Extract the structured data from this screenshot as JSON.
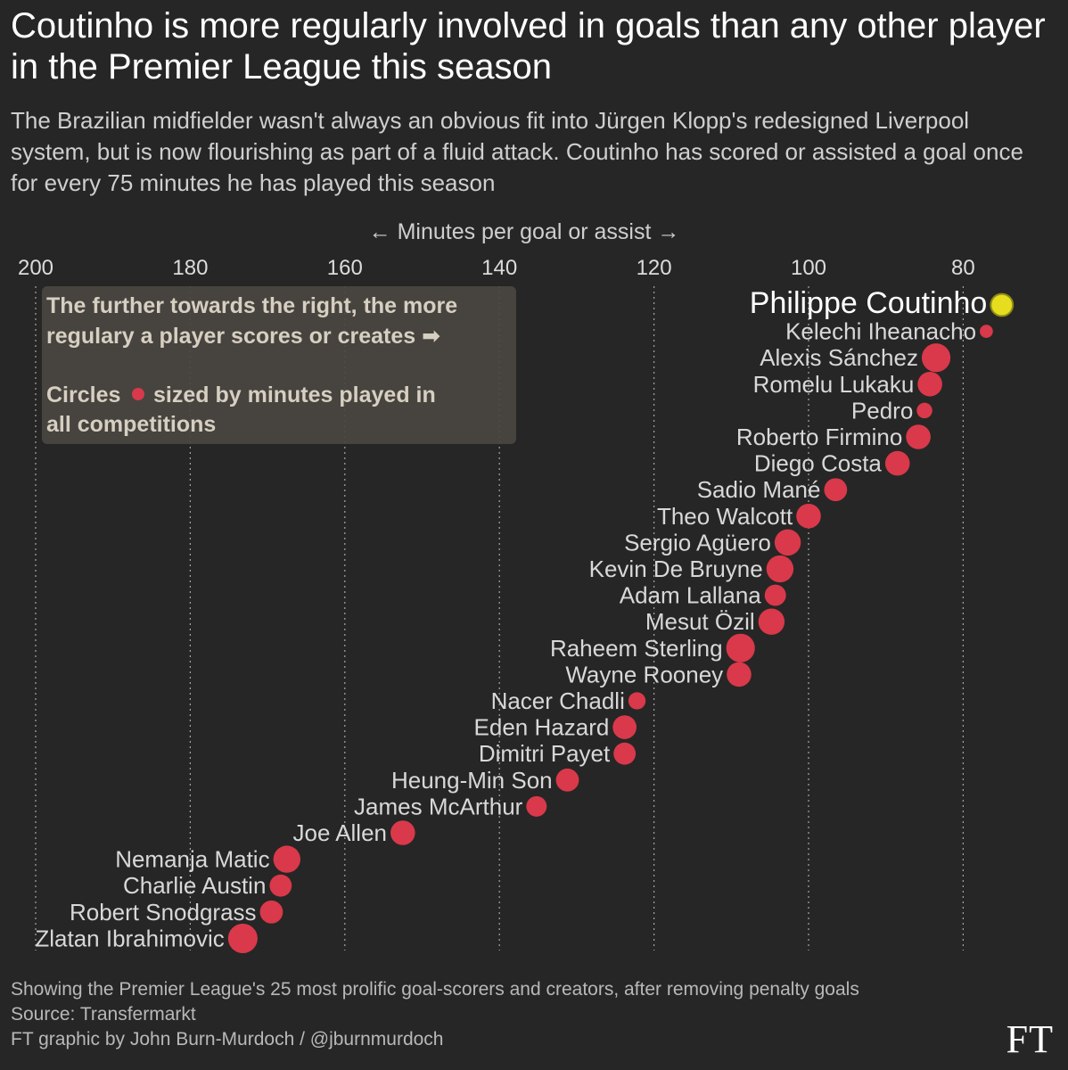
{
  "title": "Coutinho is more regularly involved in goals than any other player in the Premier League this season",
  "subtitle": "The Brazilian midfielder wasn't always an obvious fit into Jürgen Klopp's redesigned Liverpool system, but is now flourishing as part of a fluid attack. Coutinho has scored or assisted a goal once for every 75 minutes he has played this season",
  "chart_data": {
    "type": "scatter",
    "xlabel": "← Minutes per goal or assist →",
    "xlim": [
      203,
      70
    ],
    "x_ticks": [
      200,
      180,
      160,
      140,
      120,
      100,
      80
    ],
    "grid": "vertical dotted",
    "annotation": {
      "line1": "The further towards the right, the more",
      "line2": "regulary a player scores or creates ➡",
      "line3_a": "Circles",
      "line3_b": "sized by minutes played in",
      "line4": "all competitions"
    },
    "points": [
      {
        "name": "Philippe Coutinho",
        "value": 75,
        "size": 2.7,
        "highlight": true
      },
      {
        "name": "Kelechi Iheanacho",
        "value": 77,
        "size": 1.6,
        "highlight": false
      },
      {
        "name": "Alexis Sánchez",
        "value": 83.5,
        "size": 3.5,
        "highlight": false
      },
      {
        "name": "Romelu Lukaku",
        "value": 84.3,
        "size": 3.0,
        "highlight": false
      },
      {
        "name": "Pedro",
        "value": 85,
        "size": 1.9,
        "highlight": false
      },
      {
        "name": "Roberto Firmino",
        "value": 85.8,
        "size": 3.0,
        "highlight": false
      },
      {
        "name": "Diego Costa",
        "value": 88.5,
        "size": 3.0,
        "highlight": false
      },
      {
        "name": "Sadio Mané",
        "value": 96.5,
        "size": 2.8,
        "highlight": false
      },
      {
        "name": "Theo Walcott",
        "value": 100,
        "size": 3.0,
        "highlight": false
      },
      {
        "name": "Sergio Agüero",
        "value": 102.7,
        "size": 3.2,
        "highlight": false
      },
      {
        "name": "Kevin De Bruyne",
        "value": 103.7,
        "size": 3.3,
        "highlight": false
      },
      {
        "name": "Adam Lallana",
        "value": 104.3,
        "size": 2.6,
        "highlight": false
      },
      {
        "name": "Mesut Özil",
        "value": 104.8,
        "size": 3.2,
        "highlight": false
      },
      {
        "name": "Raheem Sterling",
        "value": 108.8,
        "size": 3.5,
        "highlight": false
      },
      {
        "name": "Wayne Rooney",
        "value": 109,
        "size": 3.0,
        "highlight": false
      },
      {
        "name": "Nacer Chadli",
        "value": 122.2,
        "size": 2.1,
        "highlight": false
      },
      {
        "name": "Eden Hazard",
        "value": 123.8,
        "size": 2.9,
        "highlight": false
      },
      {
        "name": "Dimitri Payet",
        "value": 123.8,
        "size": 2.7,
        "highlight": false
      },
      {
        "name": "Heung-Min Son",
        "value": 131.2,
        "size": 2.8,
        "highlight": false
      },
      {
        "name": "James McArthur",
        "value": 135.2,
        "size": 2.5,
        "highlight": false
      },
      {
        "name": "Joe Allen",
        "value": 152.5,
        "size": 3.0,
        "highlight": false
      },
      {
        "name": "Nemanja Matic",
        "value": 167.5,
        "size": 3.3,
        "highlight": false
      },
      {
        "name": "Charlie Austin",
        "value": 168.3,
        "size": 2.7,
        "highlight": false
      },
      {
        "name": "Robert Snodgrass",
        "value": 169.5,
        "size": 2.8,
        "highlight": false
      },
      {
        "name": "Zlatan Ibrahimovic",
        "value": 173.2,
        "size": 3.6,
        "highlight": false
      }
    ]
  },
  "footer": {
    "note": "Showing the Premier League's 25 most prolific goal-scorers and creators, after removing penalty goals",
    "source": "Source: Transfermarkt",
    "credit": "FT graphic by John Burn-Murdoch / @jburnmurdoch"
  },
  "logo": "FT",
  "colors": {
    "background": "#262626",
    "dot": "#d9394a",
    "highlight_dot": "#e6dd1f",
    "label": "#d8d8d8",
    "highlight_label": "#ffffff",
    "grid": "#cfcfcf",
    "annotation_box": "#4a4641",
    "annotation_text": "#d6cfc2"
  }
}
